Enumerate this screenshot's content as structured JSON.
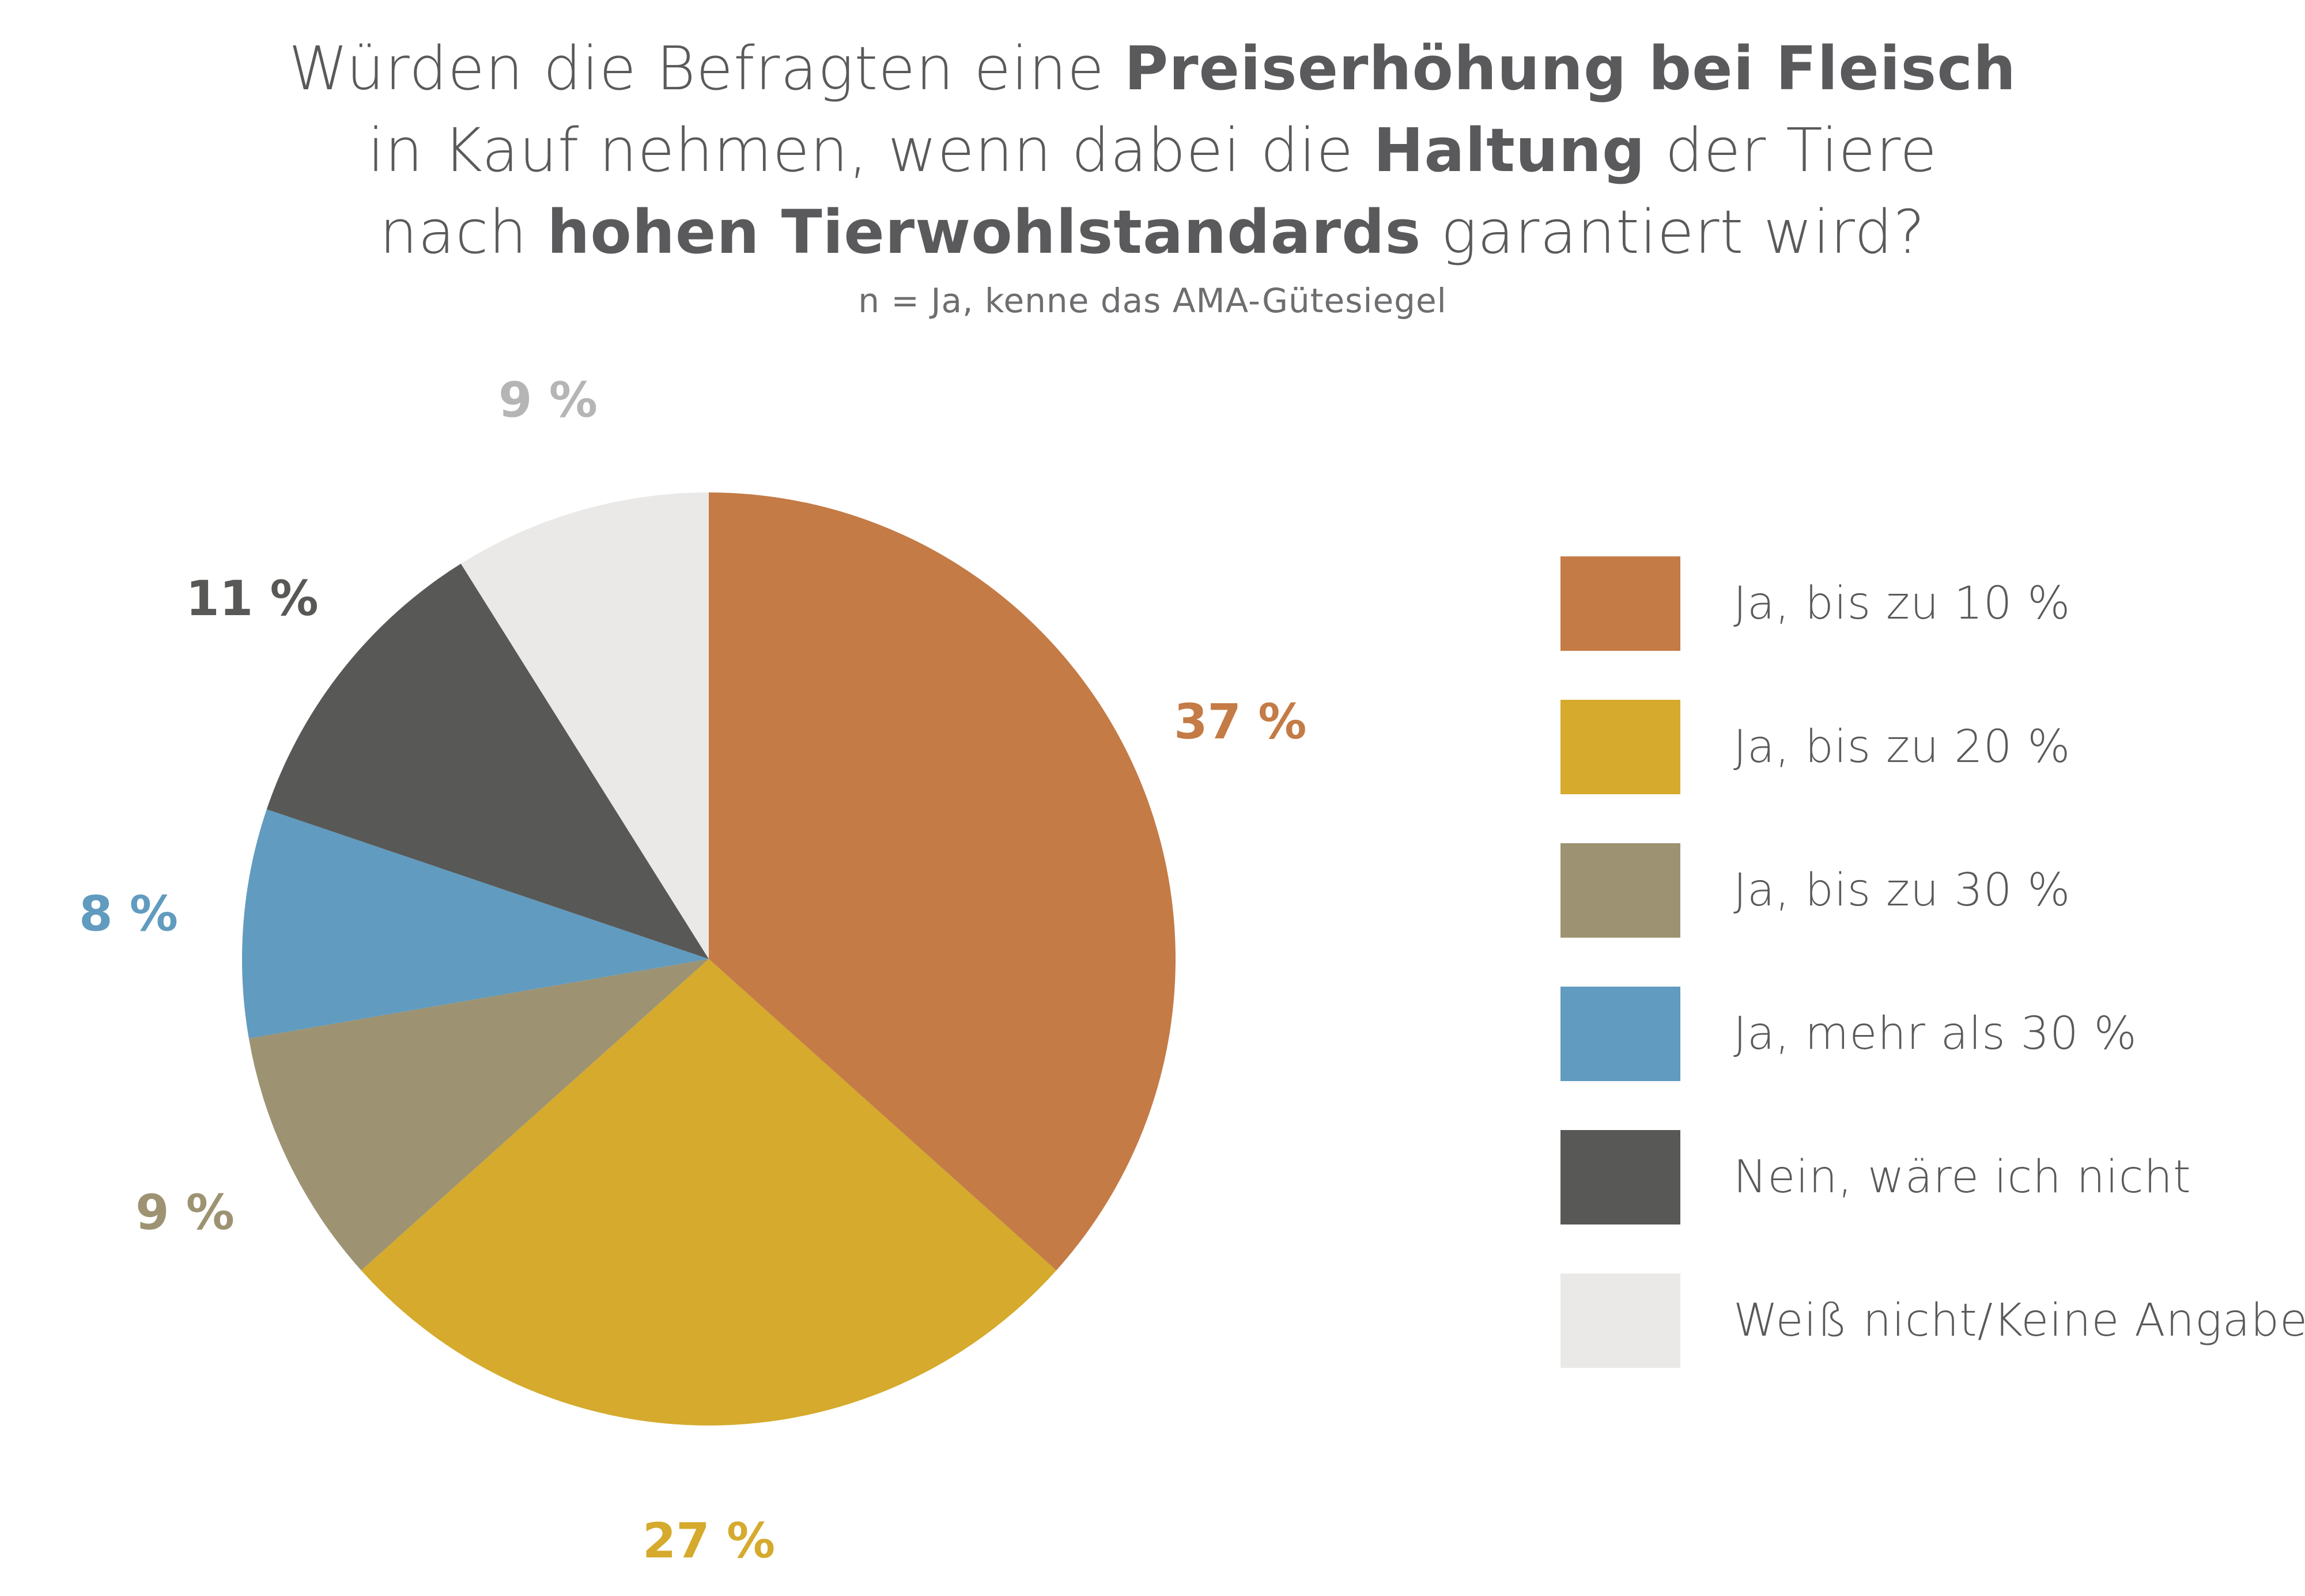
{
  "title": {
    "line1": [
      {
        "text": "Würden die Befragten eine ",
        "bold": false
      },
      {
        "text": "Preiserhöhung bei Fleisch",
        "bold": true
      }
    ],
    "line2": [
      {
        "text": "in Kauf nehmen, wenn dabei die ",
        "bold": false
      },
      {
        "text": "Haltung",
        "bold": true
      },
      {
        "text": " der Tiere",
        "bold": false
      }
    ],
    "line3": [
      {
        "text": "nach ",
        "bold": false
      },
      {
        "text": "hohen Tierwohlstandards",
        "bold": true
      },
      {
        "text": " garantiert wird?",
        "bold": false
      }
    ]
  },
  "subtitle": "n = Ja, kenne das AMA-Gütesiegel",
  "chart_data": {
    "type": "pie",
    "title": "Würden die Befragten eine Preiserhöhung bei Fleisch in Kauf nehmen, wenn dabei die Haltung der Tiere nach hohen Tierwohlstandards garantiert wird?",
    "subtitle": "n = Ja, kenne das AMA-Gütesiegel",
    "legend_position": "right",
    "start": "top, clockwise",
    "slices": [
      {
        "label": "Ja, bis zu 10 %",
        "value": 37,
        "display": "37 %",
        "color": "#c47b46"
      },
      {
        "label": "Ja, bis zu 20 %",
        "value": 27,
        "display": "27 %",
        "color": "#d5aa2d"
      },
      {
        "label": "Ja, bis zu 30 %",
        "value": 9,
        "display": "9 %",
        "color": "#9d9372"
      },
      {
        "label": "Ja, mehr als 30 %",
        "value": 8,
        "display": "8 %",
        "color": "#619bbf"
      },
      {
        "label": "Nein, wäre ich nicht",
        "value": 11,
        "display": "11 %",
        "color": "#585856"
      },
      {
        "label": "Weiß nicht/Keine Angabe",
        "value": 9,
        "display": "9 %",
        "color": "#eae9e7",
        "label_color": "#b5b5b5"
      }
    ]
  }
}
